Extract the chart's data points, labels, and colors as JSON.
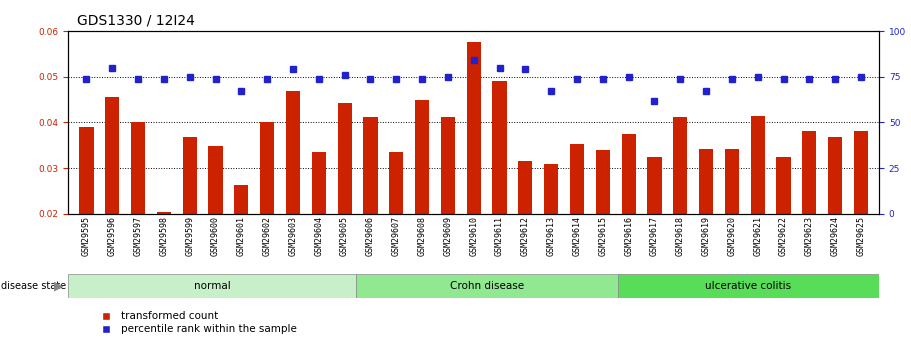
{
  "title": "GDS1330 / 12I24",
  "samples": [
    "GSM29595",
    "GSM29596",
    "GSM29597",
    "GSM29598",
    "GSM29599",
    "GSM29600",
    "GSM29601",
    "GSM29602",
    "GSM29603",
    "GSM29604",
    "GSM29605",
    "GSM29606",
    "GSM29607",
    "GSM29608",
    "GSM29609",
    "GSM29610",
    "GSM29611",
    "GSM29612",
    "GSM29613",
    "GSM29614",
    "GSM29615",
    "GSM29616",
    "GSM29617",
    "GSM29618",
    "GSM29619",
    "GSM29620",
    "GSM29621",
    "GSM29622",
    "GSM29623",
    "GSM29624",
    "GSM29625"
  ],
  "red_values": [
    0.039,
    0.0455,
    0.04,
    0.0205,
    0.0368,
    0.0348,
    0.0263,
    0.04,
    0.0468,
    0.0335,
    0.0443,
    0.0412,
    0.0335,
    0.045,
    0.0413,
    0.0575,
    0.049,
    0.0315,
    0.031,
    0.0352,
    0.034,
    0.0375,
    0.0325,
    0.0413,
    0.0343,
    0.0343,
    0.0415,
    0.0325,
    0.0382,
    0.0368,
    0.0382
  ],
  "blue_values": [
    74,
    80,
    74,
    74,
    75,
    74,
    67,
    74,
    79,
    74,
    76,
    74,
    74,
    74,
    75,
    84,
    80,
    79,
    67,
    74,
    74,
    75,
    62,
    74,
    67,
    74,
    75,
    74,
    74,
    74,
    75
  ],
  "groups": [
    {
      "label": "normal",
      "start": 0,
      "end": 11,
      "color": "#c8f0c8"
    },
    {
      "label": "Crohn disease",
      "start": 11,
      "end": 21,
      "color": "#90e890"
    },
    {
      "label": "ulcerative colitis",
      "start": 21,
      "end": 31,
      "color": "#58dd58"
    }
  ],
  "ylim_left": [
    0.02,
    0.06
  ],
  "ylim_right": [
    0,
    100
  ],
  "yticks_left": [
    0.02,
    0.03,
    0.04,
    0.05,
    0.06
  ],
  "yticks_right": [
    0,
    25,
    50,
    75,
    100
  ],
  "bar_color": "#cc2200",
  "dot_color": "#2222cc",
  "plot_bg": "#ffffff",
  "title_fontsize": 10,
  "tick_fontsize": 6.5,
  "xtick_bg": "#d0d0d0"
}
